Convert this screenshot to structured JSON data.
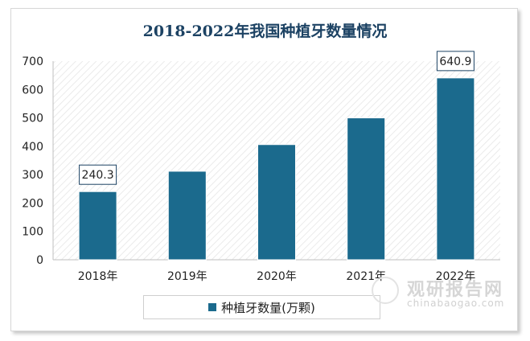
{
  "chart_data": {
    "type": "bar",
    "title": "2018-2022年我国种植牙数量情况",
    "categories": [
      "2018年",
      "2019年",
      "2020年",
      "2021年",
      "2022年"
    ],
    "series": [
      {
        "name": "种植牙数量(万颗)",
        "values": [
          240.3,
          312,
          406,
          500,
          640.9
        ],
        "color": "#1b6a8d"
      }
    ],
    "data_labels": [
      {
        "index": 0,
        "text": "240.3"
      },
      {
        "index": 4,
        "text": "640.9"
      }
    ],
    "ylim": [
      0,
      700
    ],
    "yticks": [
      0,
      100,
      200,
      300,
      400,
      500,
      600,
      700
    ],
    "grid": false,
    "legend_position": "bottom"
  },
  "watermark": {
    "name": "观研报告网",
    "url": "chinabaogao.com",
    "icon": "watermark-logo-icon"
  }
}
